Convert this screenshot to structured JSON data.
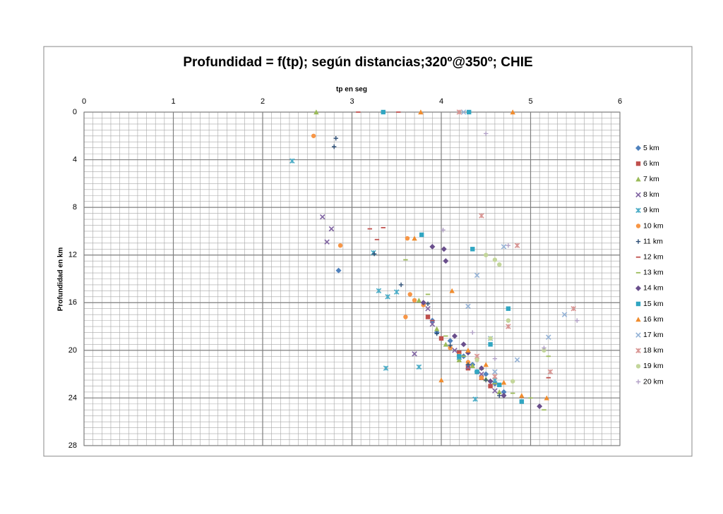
{
  "chart_data": {
    "type": "scatter",
    "title": "Profundidad = f(tp); según distancias;320º@350º; CHIE",
    "x_label": "tp en seg",
    "y_label": "Profundidad en km",
    "xlim": [
      0,
      6
    ],
    "xticks": [
      0,
      1,
      2,
      3,
      4,
      5,
      6
    ],
    "ylim": [
      0,
      28
    ],
    "yticks": [
      0,
      4,
      8,
      12,
      16,
      20,
      24,
      28
    ],
    "y_reversed": true,
    "x_axis_position": "top",
    "grid": true,
    "minor_grid": {
      "x_step": 0.1,
      "y_step": 0.5
    },
    "legend": "right",
    "series": [
      {
        "name": "5 km",
        "color": "#4f81bd",
        "marker": "diamond",
        "x": [
          2.85,
          3.9,
          4.1,
          4.25,
          4.35,
          4.5,
          4.6,
          3.95,
          4.4,
          4.7
        ],
        "y": [
          13.3,
          17.5,
          19.2,
          20.5,
          21.2,
          22,
          22.8,
          18.5,
          21.8,
          23.5
        ]
      },
      {
        "name": "6 km",
        "color": "#c0504d",
        "marker": "square",
        "x": [
          4.2,
          4.3,
          4.45,
          4.0,
          4.55,
          3.85
        ],
        "y": [
          20.2,
          21.5,
          22.3,
          19.0,
          23.0,
          17.2
        ]
      },
      {
        "name": "7 km",
        "color": "#9bbb59",
        "marker": "triangle",
        "x": [
          2.6,
          3.75,
          4.05,
          4.2,
          4.35,
          4.5,
          4.65,
          3.95
        ],
        "y": [
          0,
          15.8,
          19.5,
          20.8,
          21.3,
          22.4,
          23.5,
          18.2
        ]
      },
      {
        "name": "8 km",
        "color": "#8064a2",
        "marker": "x",
        "x": [
          2.67,
          2.77,
          2.72,
          3.7,
          3.85,
          4.15,
          4.3,
          4.45,
          4.6,
          3.9
        ],
        "y": [
          8.8,
          9.8,
          10.9,
          20.3,
          16.5,
          20.0,
          21.4,
          22.0,
          23.4,
          17.8
        ]
      },
      {
        "name": "9 km",
        "color": "#4bacc6",
        "marker": "star",
        "x": [
          2.33,
          3.24,
          3.3,
          3.4,
          3.5,
          3.38,
          3.75,
          4.38,
          4.6,
          4.2
        ],
        "y": [
          4.1,
          11.8,
          15.0,
          15.5,
          15.1,
          21.5,
          21.4,
          24.1,
          22.5,
          20.6
        ]
      },
      {
        "name": "10 km",
        "color": "#f79646",
        "marker": "circle",
        "x": [
          2.57,
          2.87,
          3.62,
          3.65,
          3.7,
          3.6,
          4.1,
          4.3,
          4.45,
          3.8,
          4.2
        ],
        "y": [
          2.0,
          11.2,
          10.6,
          15.3,
          15.8,
          17.2,
          19.8,
          21.0,
          22.3,
          16.2,
          20.4
        ]
      },
      {
        "name": "11 km",
        "color": "#2c4d75",
        "marker": "plus",
        "x": [
          2.82,
          2.8,
          3.25,
          3.55,
          3.85,
          4.1,
          4.3,
          4.5,
          4.65,
          3.95
        ],
        "y": [
          2.2,
          2.9,
          11.9,
          14.5,
          16.1,
          19.6,
          21.2,
          22.5,
          23.8,
          18.6
        ]
      },
      {
        "name": "12 km",
        "color": "#c0504d",
        "marker": "dash",
        "x": [
          3.07,
          3.2,
          3.28,
          3.35,
          3.52,
          3.9,
          4.2,
          4.4,
          5.2
        ],
        "y": [
          0,
          9.8,
          10.7,
          9.7,
          0,
          17.5,
          20.2,
          21.9,
          22.3
        ]
      },
      {
        "name": "13 km",
        "color": "#9bbb59",
        "marker": "dash",
        "x": [
          3.6,
          3.85,
          4.05,
          4.25,
          4.45,
          4.6,
          4.8,
          5.0,
          5.15,
          5.2
        ],
        "y": [
          12.4,
          15.3,
          18.8,
          20.5,
          21.6,
          22.8,
          23.6,
          24.0,
          25.0,
          20.5
        ]
      },
      {
        "name": "14 km",
        "color": "#6a4f8c",
        "marker": "diamond",
        "x": [
          3.9,
          4.03,
          4.05,
          3.8,
          4.15,
          4.3,
          4.45,
          4.55,
          4.7,
          5.1,
          4.25
        ],
        "y": [
          11.3,
          11.5,
          12.5,
          16.0,
          18.8,
          20.2,
          21.5,
          22.6,
          23.8,
          24.7,
          19.5
        ]
      },
      {
        "name": "15 km",
        "color": "#31a6c2",
        "marker": "square",
        "x": [
          4.31,
          3.78,
          4.35,
          4.55,
          4.75,
          4.2,
          4.4,
          4.65,
          3.35,
          4.9
        ],
        "y": [
          0,
          10.3,
          11.5,
          19.5,
          16.5,
          20.5,
          21.8,
          22.9,
          0,
          24.3
        ]
      },
      {
        "name": "16 km",
        "color": "#f08c2e",
        "marker": "triangle",
        "x": [
          3.77,
          4.8,
          3.7,
          4.12,
          4.3,
          4.5,
          4.7,
          4.9,
          5.18,
          4.0
        ],
        "y": [
          0,
          0,
          10.6,
          15.0,
          20.0,
          21.2,
          22.7,
          23.8,
          24.0,
          22.5
        ]
      },
      {
        "name": "17 km",
        "color": "#95b3d7",
        "marker": "x",
        "x": [
          4.25,
          4.4,
          4.7,
          5.38,
          5.2,
          4.55,
          4.85,
          4.3,
          4.6
        ],
        "y": [
          0,
          13.7,
          11.3,
          17.0,
          18.9,
          19.0,
          20.8,
          16.3,
          21.8
        ]
      },
      {
        "name": "18 km",
        "color": "#d99694",
        "marker": "star",
        "x": [
          4.2,
          4.45,
          4.85,
          5.48,
          5.22,
          4.75,
          4.4,
          4.6
        ],
        "y": [
          0,
          8.7,
          11.2,
          16.5,
          21.8,
          18.0,
          20.5,
          22.2
        ]
      },
      {
        "name": "19 km",
        "color": "#c3d69b",
        "marker": "circle",
        "x": [
          4.5,
          4.6,
          4.65,
          4.75,
          5.15,
          4.55,
          4.4,
          4.8
        ],
        "y": [
          12.0,
          12.4,
          12.8,
          17.5,
          20.0,
          19.0,
          20.8,
          22.6
        ]
      },
      {
        "name": "20 km",
        "color": "#b3a2c7",
        "marker": "plus",
        "x": [
          4.5,
          4.02,
          4.75,
          5.52,
          5.15,
          4.6,
          4.35
        ],
        "y": [
          1.8,
          9.9,
          11.2,
          17.5,
          19.8,
          20.7,
          18.5
        ]
      }
    ]
  }
}
